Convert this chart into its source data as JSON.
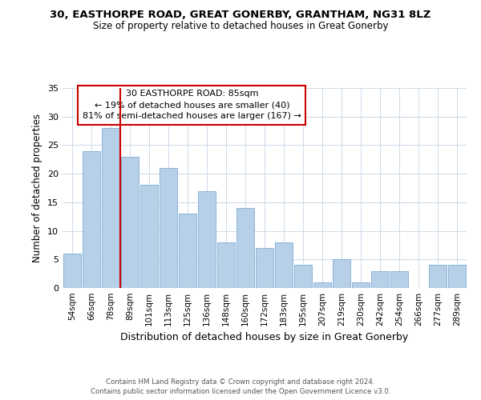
{
  "title_line1": "30, EASTHORPE ROAD, GREAT GONERBY, GRANTHAM, NG31 8LZ",
  "title_line2": "Size of property relative to detached houses in Great Gonerby",
  "xlabel": "Distribution of detached houses by size in Great Gonerby",
  "ylabel": "Number of detached properties",
  "bar_labels": [
    "54sqm",
    "66sqm",
    "78sqm",
    "89sqm",
    "101sqm",
    "113sqm",
    "125sqm",
    "136sqm",
    "148sqm",
    "160sqm",
    "172sqm",
    "183sqm",
    "195sqm",
    "207sqm",
    "219sqm",
    "230sqm",
    "242sqm",
    "254sqm",
    "266sqm",
    "277sqm",
    "289sqm"
  ],
  "bar_values": [
    6,
    24,
    28,
    23,
    18,
    21,
    13,
    17,
    8,
    14,
    7,
    8,
    4,
    1,
    5,
    1,
    3,
    3,
    0,
    4,
    4
  ],
  "bar_color": "#b8cfe8",
  "bar_edge_color": "#7aadd4",
  "vline_color": "#cc0000",
  "ylim": [
    0,
    35
  ],
  "yticks": [
    0,
    5,
    10,
    15,
    20,
    25,
    30,
    35
  ],
  "annotation_title": "30 EASTHORPE ROAD: 85sqm",
  "annotation_line1": "← 19% of detached houses are smaller (40)",
  "annotation_line2": "81% of semi-detached houses are larger (167) →",
  "annotation_box_color": "#ffffff",
  "annotation_box_edge": "#cc0000",
  "footnote1": "Contains HM Land Registry data © Crown copyright and database right 2024.",
  "footnote2": "Contains public sector information licensed under the Open Government Licence v3.0.",
  "background_color": "#ffffff",
  "grid_color": "#cdd9e8"
}
